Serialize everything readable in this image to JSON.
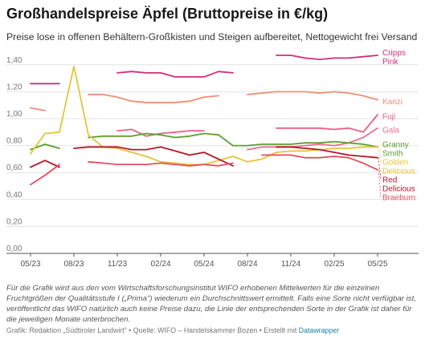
{
  "header": {
    "title": "Großhandelspreise Äpfel (Bruttopreise in €/kg)",
    "subtitle": "Preise lose in offenen Behältern-Großkisten und Steigen aufbereitet, Nettogewicht frei Versand"
  },
  "footer": {
    "note": "Für die Grafik wird aus den vom Wirtschaftsforschungsinstitut WIFO erhobenen Mittelwerten für die einzelnen Fruchtgrößen der Qualitätsstufe I („Prima\") wiederum ein Durchschnittswert ermittelt. Falls eine Sorte nicht verfügbar ist, veröffentlicht das WIFO natürlich auch keine Preise dazu, die Linie der entsprechenden Sorte in der Grafik ist daher für die jeweiligen Monate unterbrochen.",
    "credits_prefix": "Grafik: Redaktion „Südtiroler Landwirt\" • Quelle: WIFO – Handelskammer Bozen • Erstellt mit ",
    "credits_link": "Datawrapper"
  },
  "chart_data": {
    "type": "line",
    "x_start": "2023-05",
    "x_end": "2025-05",
    "x_ticks": [
      {
        "at": "2023-05",
        "label": "05/23"
      },
      {
        "at": "2023-08",
        "label": "08/23"
      },
      {
        "at": "2023-11",
        "label": "11/23"
      },
      {
        "at": "2024-02",
        "label": "02/24"
      },
      {
        "at": "2024-05",
        "label": "05/24"
      },
      {
        "at": "2024-08",
        "label": "08/24"
      },
      {
        "at": "2024-11",
        "label": "11/24"
      },
      {
        "at": "2025-02",
        "label": "02/25"
      },
      {
        "at": "2025-05",
        "label": "05/25"
      }
    ],
    "ylim": [
      0,
      1.5
    ],
    "y_ticks": [
      {
        "v": 0,
        "label": "0,00"
      },
      {
        "v": 0.2,
        "label": "0,20"
      },
      {
        "v": 0.4,
        "label": "0,40"
      },
      {
        "v": 0.6,
        "label": "0,60"
      },
      {
        "v": 0.8,
        "label": "0,80"
      },
      {
        "v": 1.0,
        "label": "1,00"
      },
      {
        "v": 1.2,
        "label": "1,20"
      },
      {
        "v": 1.4,
        "label": "1,40"
      }
    ],
    "grid": true,
    "xlabel": "",
    "ylabel": "",
    "series": [
      {
        "name": "Cripps Pink",
        "color": "#d02d7c",
        "segments": [
          [
            [
              "2023-05",
              1.26
            ],
            [
              "2023-06",
              1.26
            ],
            [
              "2023-07",
              1.26
            ]
          ],
          [
            [
              "2023-11",
              1.34
            ],
            [
              "2023-12",
              1.35
            ],
            [
              "2024-01",
              1.34
            ],
            [
              "2024-02",
              1.34
            ],
            [
              "2024-03",
              1.31
            ],
            [
              "2024-04",
              1.31
            ],
            [
              "2024-05",
              1.31
            ],
            [
              "2024-06",
              1.35
            ],
            [
              "2024-07",
              1.34
            ]
          ],
          [
            [
              "2024-10",
              1.47
            ],
            [
              "2024-11",
              1.47
            ],
            [
              "2024-12",
              1.45
            ],
            [
              "2025-01",
              1.44
            ],
            [
              "2025-02",
              1.45
            ],
            [
              "2025-03",
              1.45
            ],
            [
              "2025-04",
              1.46
            ],
            [
              "2025-05",
              1.47
            ]
          ]
        ],
        "labels": [
          "Cripps",
          "Pink"
        ]
      },
      {
        "name": "Kanzi",
        "color": "#f08e75",
        "segments": [
          [
            [
              "2023-05",
              1.08
            ],
            [
              "2023-06",
              1.06
            ]
          ],
          [
            [
              "2023-09",
              1.18
            ],
            [
              "2023-10",
              1.18
            ],
            [
              "2023-11",
              1.16
            ],
            [
              "2023-12",
              1.13
            ],
            [
              "2024-01",
              1.12
            ],
            [
              "2024-02",
              1.12
            ],
            [
              "2024-03",
              1.12
            ],
            [
              "2024-04",
              1.13
            ],
            [
              "2024-05",
              1.16
            ],
            [
              "2024-06",
              1.17
            ]
          ],
          [
            [
              "2024-08",
              1.18
            ],
            [
              "2024-09",
              1.19
            ],
            [
              "2024-10",
              1.2
            ],
            [
              "2024-11",
              1.2
            ],
            [
              "2024-12",
              1.2
            ],
            [
              "2025-01",
              1.19
            ],
            [
              "2025-02",
              1.2
            ],
            [
              "2025-03",
              1.19
            ],
            [
              "2025-04",
              1.17
            ],
            [
              "2025-05",
              1.14
            ]
          ]
        ],
        "labels": [
          "Kanzi"
        ]
      },
      {
        "name": "Fuji",
        "color": "#eb5f86",
        "segments": [
          [
            [
              "2023-11",
              0.91
            ],
            [
              "2023-12",
              0.92
            ],
            [
              "2024-01",
              0.87
            ],
            [
              "2024-02",
              0.89
            ],
            [
              "2024-03",
              0.9
            ],
            [
              "2024-04",
              0.91
            ],
            [
              "2024-05",
              0.91
            ]
          ],
          [
            [
              "2024-10",
              0.93
            ],
            [
              "2024-11",
              0.93
            ],
            [
              "2024-12",
              0.93
            ],
            [
              "2025-01",
              0.93
            ],
            [
              "2025-02",
              0.92
            ],
            [
              "2025-03",
              0.93
            ],
            [
              "2025-04",
              0.9
            ],
            [
              "2025-05",
              1.03
            ]
          ]
        ],
        "labels": [
          "Fuji"
        ]
      },
      {
        "name": "Gala",
        "color": "#e76f94",
        "segments": [
          [
            [
              "2024-08",
              0.77
            ],
            [
              "2024-09",
              0.79
            ],
            [
              "2024-10",
              0.79
            ],
            [
              "2024-11",
              0.79
            ],
            [
              "2024-12",
              0.8
            ],
            [
              "2025-01",
              0.81
            ],
            [
              "2025-02",
              0.8
            ],
            [
              "2025-03",
              0.82
            ],
            [
              "2025-04",
              0.86
            ],
            [
              "2025-05",
              0.93
            ]
          ]
        ],
        "labels": [
          "Gala"
        ]
      },
      {
        "name": "Granny Smith",
        "color": "#5c9e31",
        "segments": [
          [
            [
              "2023-05",
              0.77
            ],
            [
              "2023-06",
              0.81
            ],
            [
              "2023-07",
              0.78
            ]
          ],
          [
            [
              "2023-09",
              0.86
            ],
            [
              "2023-10",
              0.87
            ],
            [
              "2023-11",
              0.87
            ],
            [
              "2023-12",
              0.87
            ],
            [
              "2024-01",
              0.89
            ],
            [
              "2024-02",
              0.88
            ],
            [
              "2024-03",
              0.86
            ],
            [
              "2024-04",
              0.87
            ],
            [
              "2024-05",
              0.89
            ],
            [
              "2024-06",
              0.88
            ],
            [
              "2024-07",
              0.8
            ],
            [
              "2024-08",
              0.8
            ],
            [
              "2024-09",
              0.81
            ],
            [
              "2024-10",
              0.81
            ],
            [
              "2024-11",
              0.81
            ],
            [
              "2024-12",
              0.82
            ],
            [
              "2025-01",
              0.82
            ],
            [
              "2025-02",
              0.83
            ],
            [
              "2025-03",
              0.82
            ],
            [
              "2025-04",
              0.81
            ],
            [
              "2025-05",
              0.79
            ]
          ]
        ],
        "labels": [
          "Granny",
          "Smith"
        ]
      },
      {
        "name": "Golden Delicious",
        "color": "#e6c33c",
        "segments": [
          [
            [
              "2023-05",
              0.74
            ],
            [
              "2023-06",
              0.89
            ],
            [
              "2023-07",
              0.9
            ],
            [
              "2023-08",
              1.39
            ],
            [
              "2023-09",
              0.88
            ],
            [
              "2023-10",
              0.79
            ],
            [
              "2023-11",
              0.78
            ],
            [
              "2023-12",
              0.75
            ],
            [
              "2024-01",
              0.72
            ],
            [
              "2024-02",
              0.68
            ],
            [
              "2024-03",
              0.67
            ],
            [
              "2024-04",
              0.66
            ],
            [
              "2024-05",
              0.66
            ],
            [
              "2024-06",
              0.69
            ],
            [
              "2024-07",
              0.72
            ],
            [
              "2024-08",
              0.68
            ],
            [
              "2024-09",
              0.7
            ],
            [
              "2024-10",
              0.75
            ],
            [
              "2024-11",
              0.76
            ],
            [
              "2024-12",
              0.76
            ],
            [
              "2025-01",
              0.77
            ],
            [
              "2025-02",
              0.78
            ],
            [
              "2025-03",
              0.78
            ],
            [
              "2025-04",
              0.79
            ],
            [
              "2025-05",
              0.79
            ]
          ]
        ],
        "labels": [
          "Golden",
          "Delicious"
        ]
      },
      {
        "name": "Red Delicious",
        "color": "#b2182b",
        "segments": [
          [
            [
              "2023-05",
              0.64
            ],
            [
              "2023-06",
              0.69
            ],
            [
              "2023-07",
              0.64
            ]
          ],
          [
            [
              "2023-08",
              0.78
            ],
            [
              "2023-09",
              0.79
            ],
            [
              "2023-10",
              0.79
            ],
            [
              "2023-11",
              0.79
            ],
            [
              "2023-12",
              0.77
            ],
            [
              "2024-01",
              0.77
            ],
            [
              "2024-02",
              0.79
            ],
            [
              "2024-03",
              0.76
            ],
            [
              "2024-04",
              0.73
            ],
            [
              "2024-05",
              0.75
            ],
            [
              "2024-06",
              0.7
            ],
            [
              "2024-07",
              0.65
            ]
          ],
          [
            [
              "2024-10",
              0.79
            ],
            [
              "2024-11",
              0.79
            ],
            [
              "2024-12",
              0.78
            ],
            [
              "2025-01",
              0.77
            ],
            [
              "2025-02",
              0.75
            ],
            [
              "2025-03",
              0.73
            ],
            [
              "2025-04",
              0.72
            ],
            [
              "2025-05",
              0.71
            ]
          ]
        ],
        "labels": [
          "Red",
          "Delicious"
        ]
      },
      {
        "name": "Braeburn",
        "color": "#e34e5e",
        "segments": [
          [
            [
              "2023-05",
              0.51
            ],
            [
              "2023-06",
              0.58
            ],
            [
              "2023-07",
              0.66
            ]
          ],
          [
            [
              "2023-09",
              0.68
            ],
            [
              "2023-10",
              0.67
            ],
            [
              "2023-11",
              0.66
            ],
            [
              "2023-12",
              0.66
            ],
            [
              "2024-01",
              0.66
            ],
            [
              "2024-02",
              0.67
            ],
            [
              "2024-03",
              0.66
            ],
            [
              "2024-04",
              0.65
            ],
            [
              "2024-05",
              0.66
            ],
            [
              "2024-06",
              0.65
            ],
            [
              "2024-07",
              0.67
            ]
          ],
          [
            [
              "2024-09",
              0.73
            ],
            [
              "2024-10",
              0.73
            ],
            [
              "2024-11",
              0.73
            ],
            [
              "2024-12",
              0.71
            ],
            [
              "2025-01",
              0.71
            ],
            [
              "2025-02",
              0.72
            ],
            [
              "2025-03",
              0.71
            ],
            [
              "2025-04",
              0.67
            ],
            [
              "2025-05",
              0.62
            ]
          ]
        ],
        "labels": [
          "Braeburn"
        ]
      }
    ]
  }
}
